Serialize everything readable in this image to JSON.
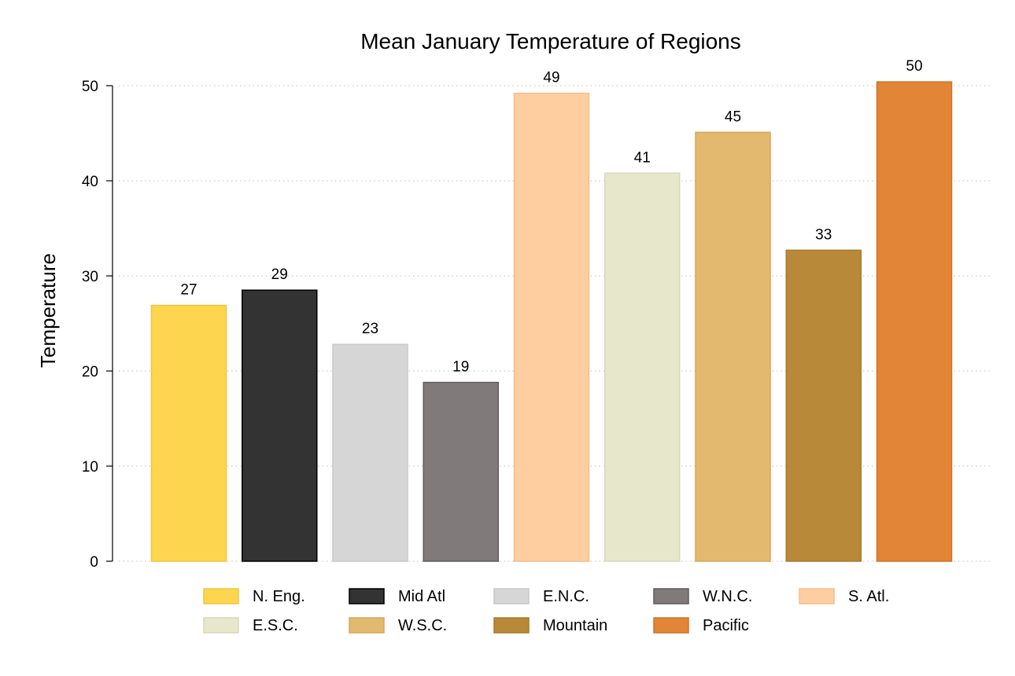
{
  "chart_data": {
    "type": "bar",
    "title": "Mean January Temperature of Regions",
    "xlabel": "",
    "ylabel": "Temperature",
    "ylim": [
      0,
      50
    ],
    "yticks": [
      0,
      10,
      20,
      30,
      40,
      50
    ],
    "grid": true,
    "legend_position": "bottom",
    "categories": [
      "N. Eng.",
      "Mid Atl",
      "E.N.C.",
      "W.N.C.",
      "S. Atl.",
      "E.S.C.",
      "W.S.C.",
      "Mountain",
      "Pacific"
    ],
    "values": [
      26.9,
      28.5,
      22.8,
      18.8,
      49.2,
      40.8,
      45.1,
      32.7,
      50.4
    ],
    "value_labels": [
      "27",
      "29",
      "23",
      "19",
      "49",
      "41",
      "45",
      "33",
      "50"
    ],
    "colors": [
      "#fed54e",
      "#333333",
      "#d6d6d6",
      "#807a7b",
      "#fecea0",
      "#e7e7cb",
      "#e3b96f",
      "#b88938",
      "#e28537"
    ],
    "edge_colors": [
      "#f0c63a",
      "#000000",
      "#c9c9c9",
      "#5f5a5b",
      "#f3bf8d",
      "#d9d9b8",
      "#d3a85c",
      "#a57a2c",
      "#cf7225"
    ]
  }
}
